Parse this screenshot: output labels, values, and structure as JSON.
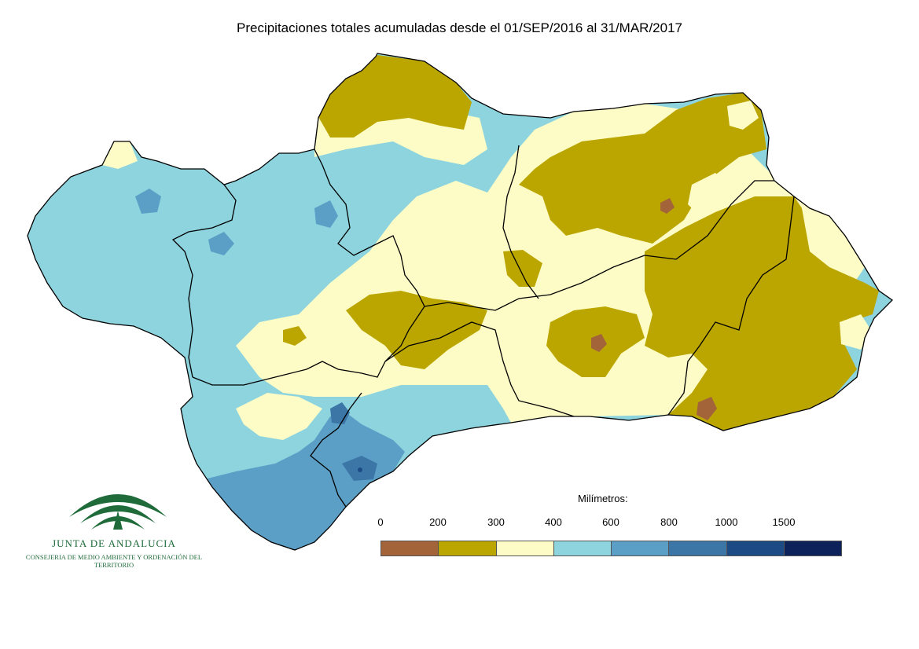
{
  "title": "Precipitaciones totales acumuladas desde el 01/SEP/2016 al 31/MAR/2017",
  "logo": {
    "name": "JUNTA DE ANDALUCIA",
    "subtitle": "CONSEJERIA DE MEDIO AMBIENTE Y ORDENACIÓN DEL TERRITORIO"
  },
  "legend": {
    "title": "Milímetros:",
    "ticks": [
      "0",
      "200",
      "300",
      "400",
      "600",
      "800",
      "1000",
      "1500"
    ],
    "colors": [
      "#a3643a",
      "#bba600",
      "#fefcc6",
      "#8dd4de",
      "#5b9fc6",
      "#3b76a7",
      "#1c4a85",
      "#0d215a"
    ]
  },
  "colors": {
    "lt200": "#a3643a",
    "c200_300": "#bba600",
    "c300_400": "#fefcc6",
    "c400_600": "#8dd4de",
    "c600_800": "#5b9fc6",
    "c800_1000": "#3b76a7",
    "c1000_1500": "#1c4a85",
    "boundary": "#000000"
  }
}
